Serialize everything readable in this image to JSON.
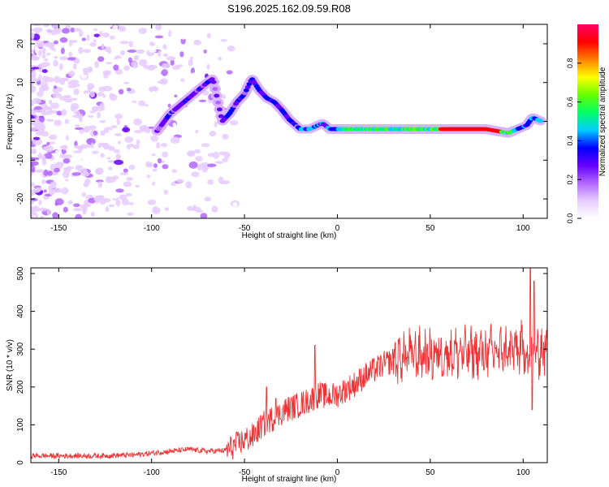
{
  "title": "S196.2025.162.09.59.R08",
  "chart_data": [
    {
      "type": "heatmap",
      "title": "S196.2025.162.09.59.R08",
      "xlabel": "Height of straight line (km)",
      "ylabel": "Frequency (Hz)",
      "xlim": [
        -165,
        113
      ],
      "ylim": [
        -25,
        25
      ],
      "xticks": [
        -150,
        -100,
        -50,
        0,
        50,
        100
      ],
      "yticks": [
        20,
        10,
        0,
        -10,
        -20
      ],
      "colorbar": {
        "label": "Normalized spectral amplitude",
        "range": [
          0,
          1
        ],
        "ticks": [
          "0.0",
          "0.2",
          "0.4",
          "0.6",
          "0.8"
        ],
        "colors": [
          "#ffffff",
          "#e6ccff",
          "#b266ff",
          "#6600ff",
          "#0000ff",
          "#00ccff",
          "#00ff66",
          "#66ff00",
          "#ffff00",
          "#ff8000",
          "#ff0000",
          "#ff0066"
        ]
      },
      "ridge": [
        {
          "x": -97,
          "y": -2.5
        },
        {
          "x": -90,
          "y": 2
        },
        {
          "x": -85,
          "y": 4
        },
        {
          "x": -80,
          "y": 6
        },
        {
          "x": -75,
          "y": 8
        },
        {
          "x": -70,
          "y": 10
        },
        {
          "x": -67,
          "y": 11
        },
        {
          "x": -62,
          "y": 0
        },
        {
          "x": -58,
          "y": 2
        },
        {
          "x": -54,
          "y": 5
        },
        {
          "x": -50,
          "y": 7
        },
        {
          "x": -46,
          "y": 11
        },
        {
          "x": -42,
          "y": 8
        },
        {
          "x": -38,
          "y": 6
        },
        {
          "x": -34,
          "y": 5
        },
        {
          "x": -30,
          "y": 3
        },
        {
          "x": -26,
          "y": 0.5
        },
        {
          "x": -20,
          "y": -2
        },
        {
          "x": -15,
          "y": -2
        },
        {
          "x": -8,
          "y": -0.5
        },
        {
          "x": -4,
          "y": -2
        },
        {
          "x": 5,
          "y": -2
        },
        {
          "x": 20,
          "y": -2
        },
        {
          "x": 40,
          "y": -2
        },
        {
          "x": 60,
          "y": -2
        },
        {
          "x": 80,
          "y": -2
        },
        {
          "x": 92,
          "y": -3
        },
        {
          "x": 97,
          "y": -2
        },
        {
          "x": 102,
          "y": -1
        },
        {
          "x": 105,
          "y": 1
        },
        {
          "x": 110,
          "y": 0
        }
      ]
    },
    {
      "type": "line",
      "xlabel": "Height of straight line (km)",
      "ylabel": "SNR (10 * v/v)",
      "xlim": [
        -165,
        113
      ],
      "ylim": [
        0,
        515
      ],
      "xticks": [
        -150,
        -100,
        -50,
        0,
        50,
        100
      ],
      "yticks": [
        0,
        100,
        200,
        300,
        400,
        500
      ],
      "color": "#ee3333",
      "envelope": [
        {
          "x": -165,
          "y": 18
        },
        {
          "x": -150,
          "y": 18
        },
        {
          "x": -130,
          "y": 18
        },
        {
          "x": -110,
          "y": 20
        },
        {
          "x": -100,
          "y": 25
        },
        {
          "x": -90,
          "y": 30
        },
        {
          "x": -80,
          "y": 35
        },
        {
          "x": -70,
          "y": 30
        },
        {
          "x": -60,
          "y": 32
        },
        {
          "x": -55,
          "y": 45
        },
        {
          "x": -50,
          "y": 60
        },
        {
          "x": -45,
          "y": 70
        },
        {
          "x": -42,
          "y": 90
        },
        {
          "x": -38,
          "y": 110
        },
        {
          "x": -33,
          "y": 120
        },
        {
          "x": -28,
          "y": 140
        },
        {
          "x": -22,
          "y": 150
        },
        {
          "x": -15,
          "y": 165
        },
        {
          "x": -10,
          "y": 180
        },
        {
          "x": -5,
          "y": 175
        },
        {
          "x": 0,
          "y": 180
        },
        {
          "x": 5,
          "y": 195
        },
        {
          "x": 10,
          "y": 210
        },
        {
          "x": 15,
          "y": 230
        },
        {
          "x": 20,
          "y": 245
        },
        {
          "x": 25,
          "y": 260
        },
        {
          "x": 30,
          "y": 270
        },
        {
          "x": 35,
          "y": 280
        },
        {
          "x": 40,
          "y": 285
        },
        {
          "x": 50,
          "y": 285
        },
        {
          "x": 60,
          "y": 290
        },
        {
          "x": 70,
          "y": 290
        },
        {
          "x": 80,
          "y": 290
        },
        {
          "x": 90,
          "y": 295
        },
        {
          "x": 100,
          "y": 300
        },
        {
          "x": 105,
          "y": 280
        },
        {
          "x": 110,
          "y": 300
        },
        {
          "x": 113,
          "y": 300
        }
      ],
      "spikes": [
        {
          "x": -38,
          "y": 200
        },
        {
          "x": -33,
          "y": 170
        },
        {
          "x": -12,
          "y": 310
        },
        {
          "x": 104,
          "y": 515
        },
        {
          "x": 105,
          "y": 140
        },
        {
          "x": 106,
          "y": 480
        }
      ]
    }
  ]
}
